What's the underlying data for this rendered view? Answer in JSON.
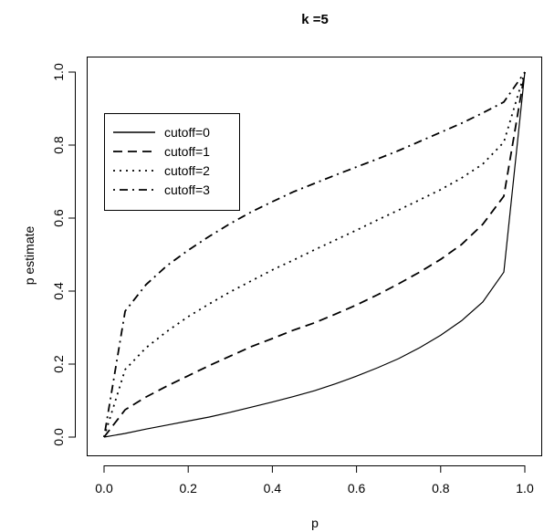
{
  "chart_data": {
    "type": "line",
    "title": "k =5",
    "xlabel": "p",
    "ylabel": "p estimate",
    "xlim": [
      0,
      1
    ],
    "ylim": [
      0,
      1
    ],
    "xticks": [
      "0.0",
      "0.2",
      "0.4",
      "0.6",
      "0.8",
      "1.0"
    ],
    "yticks": [
      "0.0",
      "0.2",
      "0.4",
      "0.6",
      "0.8",
      "1.0"
    ],
    "grid": false,
    "legend_position": "top-left",
    "x": [
      0,
      0.05,
      0.1,
      0.15,
      0.2,
      0.25,
      0.3,
      0.35,
      0.4,
      0.45,
      0.5,
      0.55,
      0.6,
      0.65,
      0.7,
      0.75,
      0.8,
      0.85,
      0.9,
      0.95,
      1.0
    ],
    "series": [
      {
        "name": "cutoff=0",
        "line_style": "solid",
        "values": [
          0,
          0.01,
          0.022,
          0.033,
          0.044,
          0.055,
          0.068,
          0.082,
          0.096,
          0.111,
          0.127,
          0.146,
          0.167,
          0.19,
          0.215,
          0.245,
          0.279,
          0.319,
          0.37,
          0.452,
          1.0
        ]
      },
      {
        "name": "cutoff=1",
        "line_style": "dashed",
        "values": [
          0,
          0.075,
          0.11,
          0.14,
          0.168,
          0.196,
          0.222,
          0.248,
          0.27,
          0.293,
          0.313,
          0.337,
          0.362,
          0.39,
          0.42,
          0.452,
          0.487,
          0.528,
          0.583,
          0.66,
          1.0
        ]
      },
      {
        "name": "cutoff=2",
        "line_style": "dotted",
        "values": [
          0,
          0.185,
          0.245,
          0.29,
          0.33,
          0.365,
          0.398,
          0.428,
          0.458,
          0.485,
          0.513,
          0.54,
          0.567,
          0.595,
          0.622,
          0.65,
          0.678,
          0.71,
          0.748,
          0.808,
          1.0
        ]
      },
      {
        "name": "cutoff=3",
        "line_style": "dotdash",
        "values": [
          0,
          0.345,
          0.418,
          0.47,
          0.512,
          0.55,
          0.585,
          0.617,
          0.645,
          0.672,
          0.695,
          0.718,
          0.74,
          0.762,
          0.785,
          0.81,
          0.835,
          0.86,
          0.888,
          0.918,
          1.0
        ]
      }
    ]
  }
}
